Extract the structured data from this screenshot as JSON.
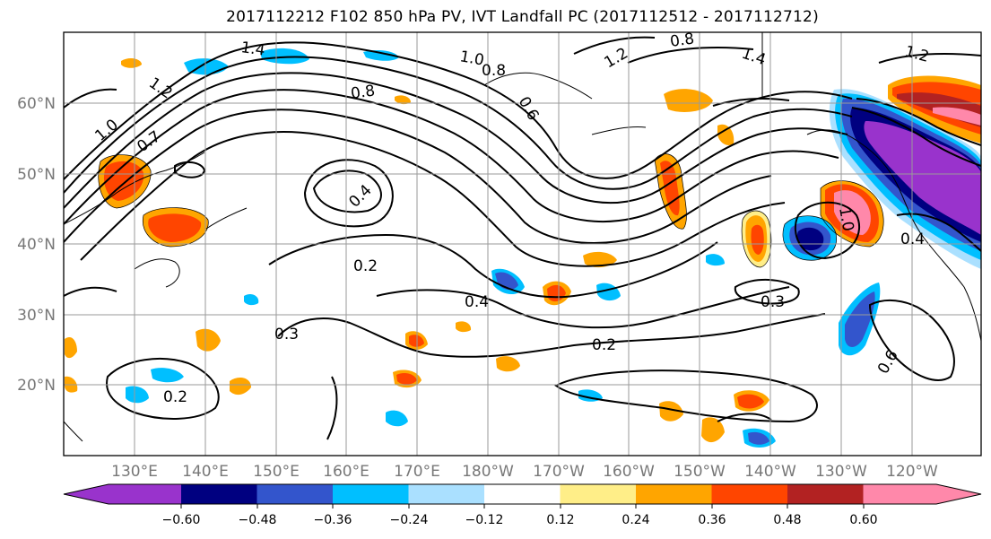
{
  "title": "2017112212 F102 850 hPa PV, IVT Landfall PC (2017112512 - 2017112712)",
  "map": {
    "lat_labels": [
      "60°N",
      "50°N",
      "40°N",
      "30°N",
      "20°N"
    ],
    "lon_labels": [
      "130°E",
      "140°E",
      "150°E",
      "160°E",
      "170°E",
      "180°W",
      "170°W",
      "160°W",
      "150°W",
      "140°W",
      "130°W",
      "120°W"
    ],
    "contour_labels": [
      "1.4",
      "1.2",
      "1.0",
      "0.8",
      "0.8",
      "0.6",
      "1.0",
      "0.7",
      "0.4",
      "0.2",
      "0.4",
      "0.3",
      "0.2",
      "0.2",
      "0.8",
      "1.4",
      "1.2",
      "0.3",
      "1.0",
      "0.4",
      "0.6",
      "1.2"
    ]
  },
  "colorbar": {
    "colors": [
      "#9933cc",
      "#000080",
      "#3355cc",
      "#00bfff",
      "#aae0ff",
      "#ffffff",
      "#ffee88",
      "#ffa500",
      "#ff4500",
      "#b22222",
      "#ff88aa"
    ],
    "tick_labels": [
      "−0.60",
      "−0.48",
      "−0.36",
      "−0.24",
      "−0.12",
      "0.12",
      "0.24",
      "0.36",
      "0.48",
      "0.60"
    ]
  }
}
